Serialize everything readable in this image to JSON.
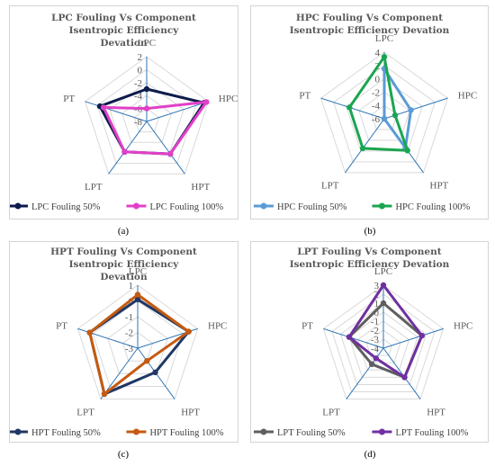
{
  "chart_data": [
    {
      "type": "radar",
      "title": "LPC Fouling Vs Component Isentropic Efficiency Devation",
      "axes": [
        "LPC",
        "HPC",
        "HPT",
        "LPT",
        "PT"
      ],
      "rlim": [
        -8,
        2
      ],
      "ticks": [
        "2",
        "0",
        "-2",
        "-4",
        "-6",
        "-8"
      ],
      "series": [
        {
          "name": "LPC Fouling 50%",
          "values": [
            -3,
            1.3,
            -1.8,
            -2.2,
            -0.4
          ],
          "color": "#0d1b4c"
        },
        {
          "name": "LPC Fouling 100%",
          "values": [
            -6,
            1.7,
            -1.8,
            -2.2,
            -1.0
          ],
          "color": "#e040c8"
        }
      ],
      "legend": "bottom",
      "label": "(a)"
    },
    {
      "type": "radar",
      "title": "HPC Fouling Vs Component Isentropic Efficiency Devation",
      "axes": [
        "LPC",
        "HPC",
        "HPT",
        "LPT",
        "PT"
      ],
      "rlim": [
        -6,
        4
      ],
      "ticks": [
        "4",
        "2",
        "0",
        "-2",
        "-4",
        "-6"
      ],
      "series": [
        {
          "name": "HPC Fouling 50%",
          "values": [
            1.5,
            -1.8,
            -0.6,
            -6,
            -6
          ],
          "color": "#5b9bd5"
        },
        {
          "name": "HPC Fouling 100%",
          "values": [
            3.3,
            -4.3,
            -0.1,
            -0.5,
            -0.5
          ],
          "color": "#1aa550"
        }
      ],
      "legend": "bottom",
      "label": "(b)"
    },
    {
      "type": "radar",
      "title": "HPT Fouling Vs Component Isentropic Efficiency Devation",
      "axes": [
        "LPC",
        "HPC",
        "HPT",
        "LPT",
        "PT"
      ],
      "rlim": [
        -3,
        1
      ],
      "ticks": [
        "1",
        "0",
        "-1",
        "-2",
        "-3"
      ],
      "series": [
        {
          "name": "HPT Fouling 50%",
          "values": [
            0.1,
            0.4,
            -1.1,
            0.6,
            0.2
          ],
          "color": "#1f3864"
        },
        {
          "name": "HPT Fouling 100%",
          "values": [
            0.4,
            0.4,
            -2.0,
            0.6,
            0.2
          ],
          "color": "#c55a11"
        }
      ],
      "legend": "bottom",
      "label": "(c)"
    },
    {
      "type": "radar",
      "title": "LPT Fouling Vs Component Isentropic Efficiency Devation",
      "axes": [
        "LPC",
        "HPC",
        "HPT",
        "LPT",
        "PT"
      ],
      "rlim": [
        -4,
        3
      ],
      "ticks": [
        "3",
        "2",
        "1",
        "0",
        "-1",
        "-2",
        "-3",
        "-4"
      ],
      "series": [
        {
          "name": "LPT Fouling 50%",
          "values": [
            1,
            0.5,
            0,
            -1.8,
            0
          ],
          "color": "#5f5f5f"
        },
        {
          "name": "LPT Fouling 100%",
          "values": [
            3,
            0.5,
            0,
            -2.6,
            0
          ],
          "color": "#7030a0"
        }
      ],
      "legend": "bottom",
      "label": "(d)"
    }
  ]
}
